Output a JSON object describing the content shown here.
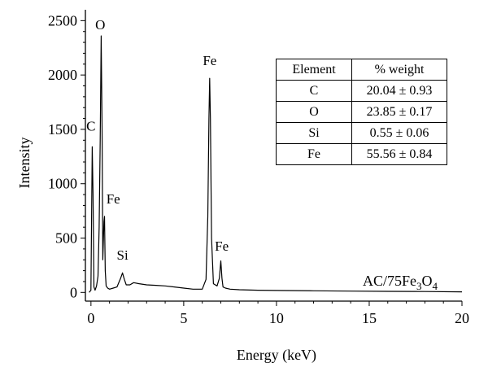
{
  "chart_data": {
    "type": "line",
    "title": "",
    "xlabel": "Energy (keV)",
    "ylabel": "Intensity",
    "xlim": [
      -0.3,
      20
    ],
    "ylim": [
      -80,
      2600
    ],
    "x_ticks": [
      0,
      5,
      10,
      15,
      20
    ],
    "y_ticks": [
      0,
      500,
      1000,
      1500,
      2000,
      2500
    ],
    "x_tick_labels": [
      "0",
      "5",
      "10",
      "15",
      "20"
    ],
    "y_tick_labels": [
      "0",
      "500",
      "1000",
      "1500",
      "2000",
      "2500"
    ],
    "grid": false,
    "sample_label": {
      "base": "AC/75Fe",
      "sub1": "3",
      "mid": "O",
      "sub2": "4"
    },
    "series": [
      {
        "x": [
          -0.1,
          0.0,
          0.07,
          0.11,
          0.16,
          0.22,
          0.3,
          0.38,
          0.44,
          0.5,
          0.55,
          0.6,
          0.64,
          0.7,
          0.73,
          0.77,
          0.82,
          0.9,
          1.0,
          1.2,
          1.4,
          1.6,
          1.7,
          1.8,
          1.9,
          2.1,
          2.3,
          2.6,
          3.0,
          3.5,
          4.0,
          4.5,
          5.0,
          5.5,
          6.0,
          6.2,
          6.3,
          6.36,
          6.4,
          6.44,
          6.5,
          6.6,
          6.8,
          6.92,
          7.0,
          7.06,
          7.12,
          7.25,
          7.5,
          8.0,
          9.0,
          10.0,
          12.0,
          14.0,
          16.0,
          18.0,
          20.0
        ],
        "y": [
          0,
          20,
          1340,
          900,
          50,
          20,
          60,
          150,
          600,
          1400,
          2360,
          1500,
          300,
          650,
          700,
          200,
          60,
          40,
          30,
          40,
          50,
          130,
          180,
          120,
          70,
          70,
          90,
          80,
          70,
          65,
          60,
          50,
          40,
          30,
          30,
          120,
          700,
          1600,
          1970,
          1600,
          500,
          80,
          60,
          130,
          290,
          130,
          50,
          40,
          30,
          25,
          20,
          18,
          15,
          12,
          10,
          8,
          5
        ]
      }
    ],
    "peak_labels": [
      {
        "text": "O",
        "x": 0.5,
        "y": 2420
      },
      {
        "text": "C",
        "x": 0.0,
        "y": 1490
      },
      {
        "text": "Fe",
        "x": 1.2,
        "y": 820
      },
      {
        "text": "Si",
        "x": 1.7,
        "y": 300
      },
      {
        "text": "Fe",
        "x": 6.4,
        "y": 2090
      },
      {
        "text": "Fe",
        "x": 7.05,
        "y": 385
      }
    ]
  },
  "table": {
    "headers": [
      "Element",
      "% weight"
    ],
    "rows": [
      [
        "C",
        "20.04 ± 0.93"
      ],
      [
        "O",
        "23.85 ± 0.17"
      ],
      [
        "Si",
        "0.55 ± 0.06"
      ],
      [
        "Fe",
        "55.56 ± 0.84"
      ]
    ]
  }
}
